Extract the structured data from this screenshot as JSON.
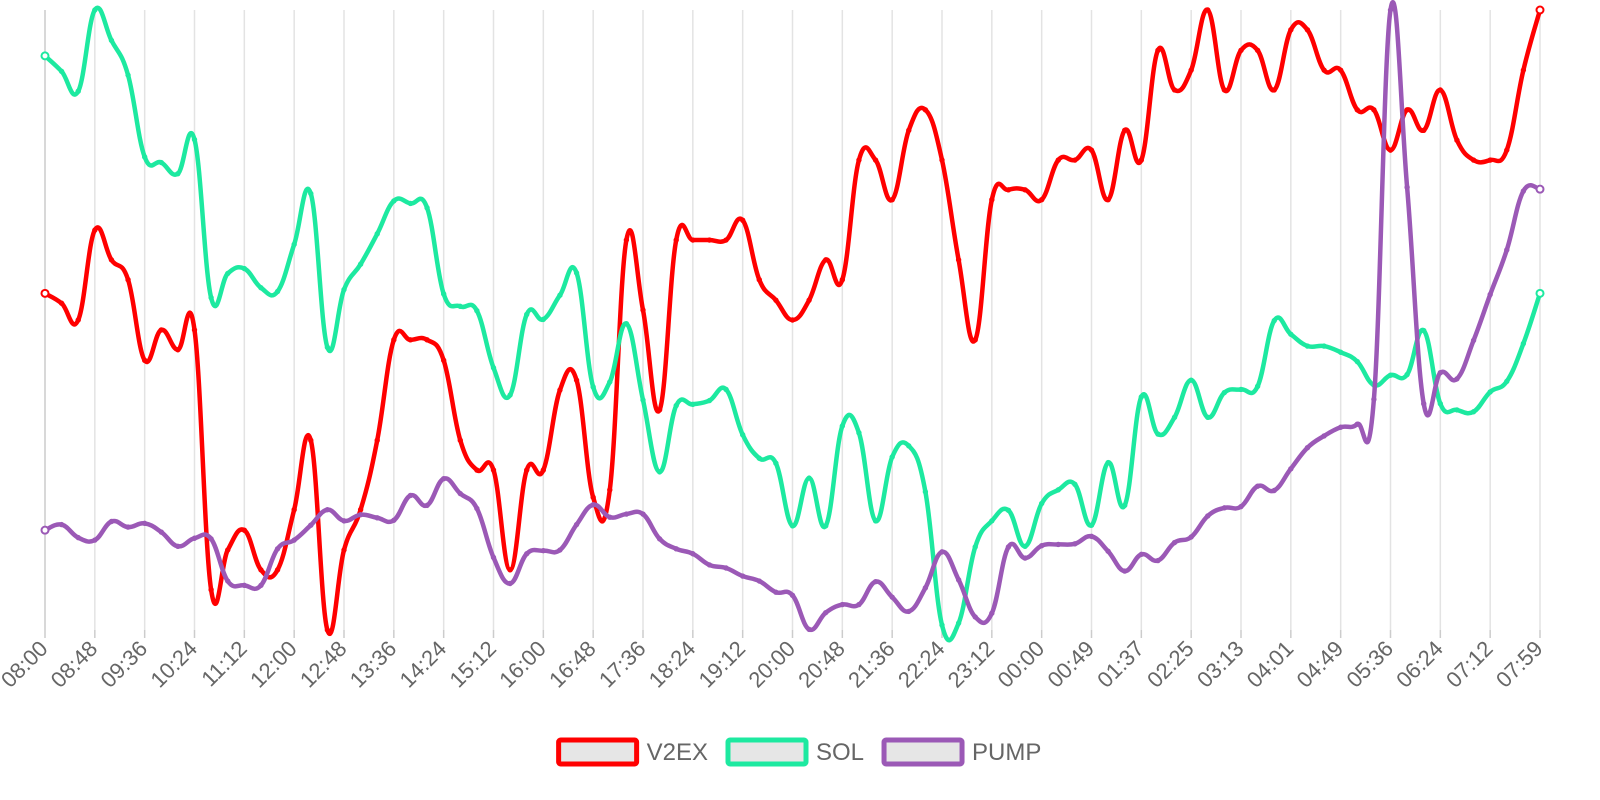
{
  "chart_data": {
    "type": "line",
    "title": "",
    "xlabel": "",
    "ylabel": "",
    "ylim": [
      0,
      100
    ],
    "grid": "vertical",
    "legend_position": "bottom",
    "y_axis_labels_shown": false,
    "x_tick_labels": [
      "08:00",
      "08:48",
      "09:36",
      "10:24",
      "11:12",
      "12:00",
      "12:48",
      "13:36",
      "14:24",
      "15:12",
      "16:00",
      "16:48",
      "17:36",
      "18:24",
      "19:12",
      "20:00",
      "20:48",
      "21:36",
      "22:24",
      "23:12",
      "00:00",
      "00:49",
      "01:37",
      "02:25",
      "03:13",
      "04:01",
      "04:49",
      "05:36",
      "06:24",
      "07:12",
      "07:59"
    ],
    "point_count": 91,
    "series": [
      {
        "name": "V2EX",
        "color": "#ff0000",
        "values": [
          54.3,
          52.7,
          50,
          64.5,
          59.7,
          56.5,
          43.5,
          48.4,
          45.2,
          48.4,
          6.5,
          12.9,
          16.1,
          9.7,
          9.7,
          19.4,
          30.6,
          0,
          12.9,
          19.4,
          30.6,
          46.8,
          46.8,
          46.8,
          43.5,
          30.6,
          25.8,
          25.8,
          9.7,
          25.8,
          25.8,
          38.7,
          40.3,
          21.4,
          22.6,
          62.9,
          51.6,
          35.5,
          62.9,
          62.9,
          62.9,
          62.9,
          66.1,
          56.5,
          53.2,
          50,
          53.2,
          59.7,
          56.5,
          75.8,
          75.8,
          69.4,
          80.6,
          83.9,
          75.8,
          59.7,
          46.8,
          69.4,
          71,
          71,
          69.4,
          75.8,
          75.8,
          77.4,
          69.4,
          80.6,
          75.8,
          93.5,
          87.1,
          90.3,
          100,
          87.1,
          93.5,
          93.5,
          87.1,
          96.8,
          96.8,
          90.3,
          90.3,
          83.9,
          83.9,
          77.4,
          83.9,
          80.6,
          87.1,
          79,
          75.8,
          75.8,
          77.4,
          90.3,
          100
        ]
      },
      {
        "name": "SOL",
        "color": "#1de9a0",
        "values": [
          92.6,
          90.1,
          86.9,
          100,
          95.1,
          89.5,
          76.3,
          75.4,
          73.6,
          79.1,
          53.6,
          57.5,
          58.3,
          55.2,
          54.6,
          62.2,
          70.4,
          45.6,
          54.9,
          59,
          63.9,
          69.2,
          68.8,
          68.1,
          54.2,
          52.2,
          51.5,
          42.3,
          37.9,
          50.9,
          50.1,
          54,
          57.6,
          39.2,
          40,
          49.4,
          37.1,
          25.5,
          36.2,
          36.4,
          37,
          38.8,
          31.5,
          27.7,
          26.9,
          16.8,
          24.5,
          16.8,
          32.9,
          31.8,
          17.6,
          27.9,
          29.7,
          22.3,
          0.8,
          1.1,
          13.4,
          17.6,
          19.3,
          13.5,
          20.4,
          22.6,
          23.5,
          16.9,
          27,
          20.1,
          37.6,
          31.6,
          34.3,
          40.3,
          34.3,
          38.3,
          38.8,
          39.3,
          49.9,
          47.7,
          45.8,
          45.8,
          44.8,
          43.3,
          39.5,
          41.1,
          41.2,
          48.3,
          36.5,
          35.5,
          35.2,
          38.4,
          40.1,
          46.2,
          54.3
        ]
      },
      {
        "name": "PUMP",
        "color": "#9b59b6",
        "values": [
          16.1,
          17,
          14.9,
          14.5,
          17.5,
          16.6,
          17.2,
          15.8,
          13.5,
          14.8,
          14.7,
          7.9,
          7.2,
          7.2,
          13.1,
          14.5,
          16.9,
          19.4,
          17.6,
          18.6,
          18.1,
          17.7,
          21.7,
          20.1,
          24.4,
          22,
          19.6,
          11.7,
          7.5,
          12.3,
          12.8,
          12.9,
          17,
          20.2,
          18.2,
          18.7,
          18.7,
          14.7,
          13.1,
          12.3,
          10.5,
          10,
          8.7,
          7.9,
          6.1,
          5.6,
          0.1,
          2.8,
          4.1,
          4.1,
          7.8,
          5.3,
          3,
          6.8,
          12.6,
          8.1,
          2.1,
          2.7,
          13.4,
          11.6,
          13.6,
          13.8,
          13.9,
          15.1,
          12.7,
          9.5,
          12.2,
          11.2,
          14.1,
          15,
          18.4,
          19.7,
          19.9,
          23.2,
          22.5,
          26,
          29.4,
          31.3,
          32.7,
          33.2,
          37.2,
          100,
          71.4,
          36.5,
          41.5,
          40.5,
          46.7,
          54.1,
          61.3,
          70.8,
          71.1
        ]
      }
    ]
  }
}
